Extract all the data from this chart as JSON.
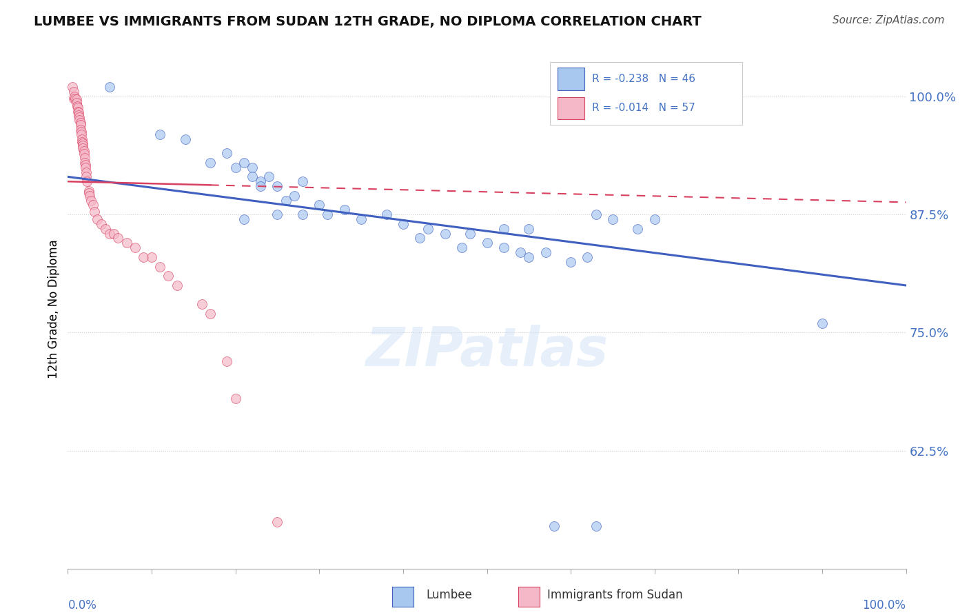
{
  "title": "LUMBEE VS IMMIGRANTS FROM SUDAN 12TH GRADE, NO DIPLOMA CORRELATION CHART",
  "source": "Source: ZipAtlas.com",
  "ylabel": "12th Grade, No Diploma",
  "ytick_labels": [
    "62.5%",
    "75.0%",
    "87.5%",
    "100.0%"
  ],
  "ytick_values": [
    0.625,
    0.75,
    0.875,
    1.0
  ],
  "xlim": [
    0.0,
    1.0
  ],
  "ylim": [
    0.5,
    1.05
  ],
  "legend_R_blue": "R = -0.238",
  "legend_N_blue": "N = 46",
  "legend_R_pink": "R = -0.014",
  "legend_N_pink": "N = 57",
  "blue_color": "#A8C8F0",
  "pink_color": "#F5B8C8",
  "trend_blue_color": "#4060C0",
  "trend_pink_color": "#D84060",
  "watermark": "ZIPatlas",
  "lumbee_x": [
    0.05,
    0.11,
    0.14,
    0.17,
    0.19,
    0.2,
    0.21,
    0.22,
    0.22,
    0.23,
    0.23,
    0.24,
    0.25,
    0.26,
    0.27,
    0.28,
    0.3,
    0.31,
    0.33,
    0.35,
    0.38,
    0.4,
    0.42,
    0.43,
    0.45,
    0.47,
    0.48,
    0.5,
    0.52,
    0.54,
    0.55,
    0.57,
    0.6,
    0.62,
    0.63,
    0.65,
    0.68,
    0.7,
    0.9,
    0.21,
    0.25,
    0.28,
    0.52,
    0.55,
    0.58,
    0.63
  ],
  "lumbee_y": [
    1.01,
    0.96,
    0.955,
    0.93,
    0.94,
    0.925,
    0.93,
    0.925,
    0.915,
    0.91,
    0.905,
    0.915,
    0.905,
    0.89,
    0.895,
    0.91,
    0.885,
    0.875,
    0.88,
    0.87,
    0.875,
    0.865,
    0.85,
    0.86,
    0.855,
    0.84,
    0.855,
    0.845,
    0.84,
    0.835,
    0.83,
    0.835,
    0.825,
    0.83,
    0.875,
    0.87,
    0.86,
    0.87,
    0.76,
    0.87,
    0.875,
    0.875,
    0.86,
    0.86,
    0.545,
    0.545
  ],
  "sudan_x": [
    0.005,
    0.007,
    0.007,
    0.008,
    0.009,
    0.01,
    0.01,
    0.011,
    0.012,
    0.012,
    0.013,
    0.013,
    0.014,
    0.014,
    0.015,
    0.015,
    0.015,
    0.016,
    0.016,
    0.017,
    0.017,
    0.018,
    0.018,
    0.018,
    0.019,
    0.019,
    0.02,
    0.02,
    0.021,
    0.021,
    0.022,
    0.022,
    0.023,
    0.025,
    0.025,
    0.026,
    0.028,
    0.03,
    0.032,
    0.035,
    0.04,
    0.045,
    0.05,
    0.055,
    0.06,
    0.07,
    0.08,
    0.09,
    0.1,
    0.11,
    0.12,
    0.13,
    0.16,
    0.17,
    0.19,
    0.2,
    0.25
  ],
  "sudan_y": [
    1.01,
    1.005,
    0.998,
    1.0,
    0.998,
    0.997,
    0.993,
    0.99,
    0.988,
    0.984,
    0.983,
    0.98,
    0.978,
    0.975,
    0.972,
    0.97,
    0.965,
    0.963,
    0.96,
    0.955,
    0.952,
    0.95,
    0.948,
    0.945,
    0.942,
    0.939,
    0.935,
    0.93,
    0.928,
    0.925,
    0.92,
    0.915,
    0.91,
    0.9,
    0.898,
    0.895,
    0.89,
    0.885,
    0.878,
    0.87,
    0.865,
    0.86,
    0.855,
    0.855,
    0.85,
    0.845,
    0.84,
    0.83,
    0.83,
    0.82,
    0.81,
    0.8,
    0.78,
    0.77,
    0.72,
    0.68,
    0.55
  ],
  "blue_trend_x0": 0.0,
  "blue_trend_x1": 1.0,
  "blue_trend_y0": 0.915,
  "blue_trend_y1": 0.8,
  "pink_trend_x0": 0.0,
  "pink_trend_x1": 1.0,
  "pink_trend_y0": 0.91,
  "pink_trend_y1": 0.888
}
